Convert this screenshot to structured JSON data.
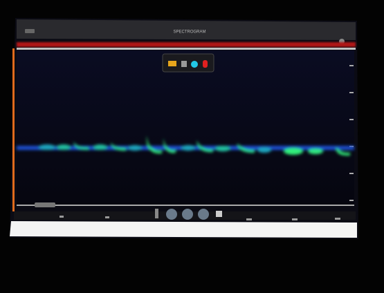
{
  "header": {
    "title": "SPECTROGRAM"
  }
}
